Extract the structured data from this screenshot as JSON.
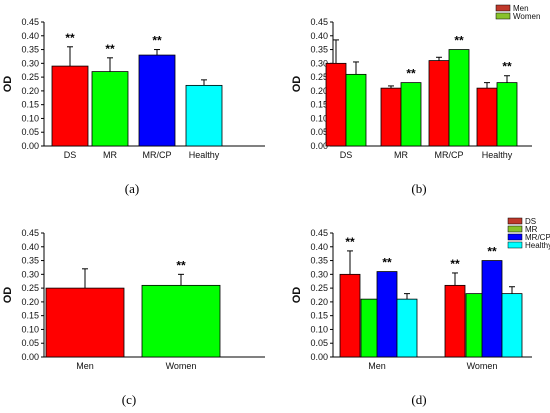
{
  "chart_data": [
    {
      "panel": "(a)",
      "type": "bar",
      "ylabel": "OD",
      "ylim": [
        0,
        0.45
      ],
      "yticks": [
        "0.00",
        "0.05",
        "0.10",
        "0.15",
        "0.20",
        "0.25",
        "0.30",
        "0.35",
        "0.40",
        "0.45"
      ],
      "categories": [
        "DS",
        "MR",
        "MR/CP",
        "Healthy"
      ],
      "series": [
        {
          "values": [
            0.29,
            0.27,
            0.33,
            0.22
          ],
          "errors": [
            0.07,
            0.05,
            0.02,
            0.02
          ],
          "colors": [
            "#ff0000",
            "#00ff00",
            "#0000ff",
            "#00ffff"
          ],
          "annotations": [
            "**",
            "**",
            "**",
            ""
          ]
        }
      ]
    },
    {
      "panel": "(b)",
      "type": "bar",
      "ylabel": "OD",
      "ylim": [
        0,
        0.45
      ],
      "yticks": [
        "0.00",
        "0.05",
        "0.10",
        "0.15",
        "0.20",
        "0.25",
        "0.30",
        "0.35",
        "0.40",
        "0.45"
      ],
      "categories": [
        "DS",
        "MR",
        "MR/CP",
        "Healthy"
      ],
      "legend_position": "top-right",
      "series": [
        {
          "name": "Men",
          "color": "#ff0000",
          "legend_color": "#c0392b",
          "values": [
            0.3,
            0.21,
            0.31,
            0.21
          ],
          "errors": [
            0.085,
            0.008,
            0.012,
            0.02
          ],
          "annotations": [
            "",
            "",
            "",
            ""
          ]
        },
        {
          "name": "Women",
          "color": "#00ff00",
          "legend_color": "#88c22b",
          "values": [
            0.26,
            0.23,
            0.35,
            0.23
          ],
          "errors": [
            0.045,
            0.0,
            0.0,
            0.025
          ],
          "annotations": [
            "",
            "**",
            "**",
            "**"
          ]
        }
      ]
    },
    {
      "panel": "(c)",
      "type": "bar",
      "ylabel": "OD",
      "ylim": [
        0,
        0.45
      ],
      "yticks": [
        "0.00",
        "0.05",
        "0.10",
        "0.15",
        "0.20",
        "0.25",
        "0.30",
        "0.35",
        "0.40",
        "0.45"
      ],
      "categories": [
        "Men",
        "Women"
      ],
      "series": [
        {
          "values": [
            0.25,
            0.26
          ],
          "errors": [
            0.07,
            0.04
          ],
          "colors": [
            "#ff0000",
            "#00ff00"
          ],
          "annotations": [
            "",
            "**"
          ]
        }
      ]
    },
    {
      "panel": "(d)",
      "type": "bar",
      "ylabel": "OD",
      "ylim": [
        0,
        0.45
      ],
      "yticks": [
        "0.00",
        "0.05",
        "0.10",
        "0.15",
        "0.20",
        "0.25",
        "0.30",
        "0.35",
        "0.40",
        "0.45"
      ],
      "categories": [
        "Men",
        "Women"
      ],
      "legend_position": "top-right",
      "series": [
        {
          "name": "DS",
          "color": "#ff0000",
          "legend_color": "#c0392b",
          "values": [
            0.3,
            0.26
          ],
          "errors": [
            0.085,
            0.045
          ],
          "annotations": [
            "**",
            "**"
          ]
        },
        {
          "name": "MR",
          "color": "#00ff00",
          "legend_color": "#88c22b",
          "values": [
            0.21,
            0.23
          ],
          "errors": [
            0.0,
            0.0
          ],
          "annotations": [
            "",
            ""
          ]
        },
        {
          "name": "MR/CP",
          "color": "#0000ff",
          "legend_color": "#0000ff",
          "values": [
            0.31,
            0.35
          ],
          "errors": [
            0.0,
            0.0
          ],
          "annotations": [
            "**",
            "**"
          ]
        },
        {
          "name": "Healthy",
          "color": "#00ffff",
          "legend_color": "#00ffff",
          "values": [
            0.21,
            0.23
          ],
          "errors": [
            0.02,
            0.025
          ],
          "annotations": [
            "",
            ""
          ]
        }
      ]
    }
  ]
}
